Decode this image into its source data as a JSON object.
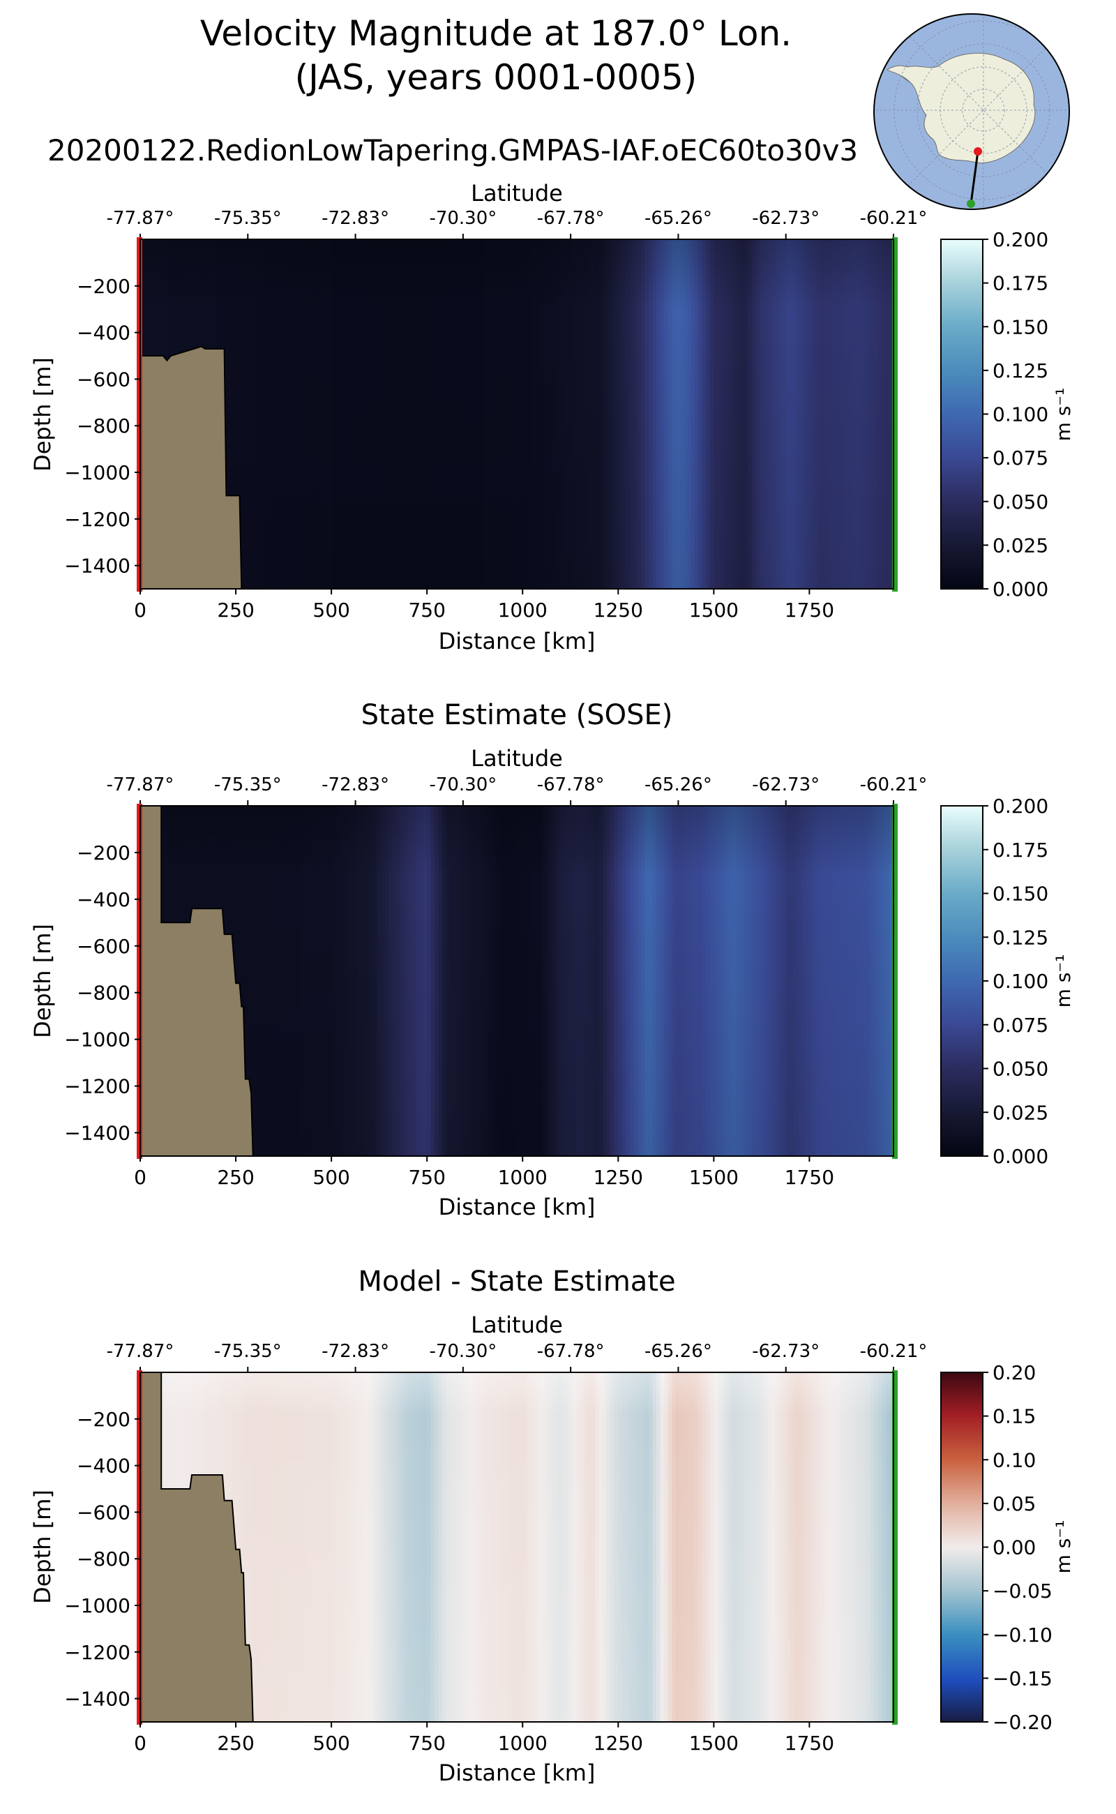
{
  "figure": {
    "title_line1": "Velocity Magnitude at 187.0° Lon.",
    "title_line2": "(JAS, years 0001-0005)",
    "run_name": "20200122.RedionLowTapering.GMPAS-IAF.oEC60to30v3"
  },
  "chart_data": [
    {
      "type": "heatmap",
      "title": "",
      "xlabel": "Distance [km]",
      "ylabel": "Depth [m]",
      "top_axis_label": "Latitude",
      "xlim": [
        0,
        1970
      ],
      "ylim": [
        -1500,
        0
      ],
      "x_ticks": [
        0,
        250,
        500,
        750,
        1000,
        1250,
        1500,
        1750
      ],
      "y_ticks": [
        -200,
        -400,
        -600,
        -800,
        -1000,
        -1200,
        -1400
      ],
      "lat_tick_labels": [
        "-77.87°",
        "-75.35°",
        "-72.83°",
        "-70.30°",
        "-67.78°",
        "-65.26°",
        "-62.73°",
        "-60.21°"
      ],
      "colorbar": {
        "label": "m s⁻¹",
        "min": 0.0,
        "max": 0.2,
        "colormap": "ice",
        "ticks": [
          "0.000",
          "0.025",
          "0.050",
          "0.075",
          "0.100",
          "0.125",
          "0.150",
          "0.175",
          "0.200"
        ]
      },
      "bathymetry_km_m": [
        [
          0,
          -500
        ],
        [
          60,
          -500
        ],
        [
          70,
          -520
        ],
        [
          80,
          -500
        ],
        [
          140,
          -470
        ],
        [
          160,
          -460
        ],
        [
          170,
          -470
        ],
        [
          220,
          -470
        ],
        [
          225,
          -1100
        ],
        [
          260,
          -1100
        ],
        [
          265,
          -1500
        ]
      ],
      "field_profile": [
        [
          0,
          0.012
        ],
        [
          200,
          0.01
        ],
        [
          400,
          0.008
        ],
        [
          700,
          0.006
        ],
        [
          1000,
          0.008
        ],
        [
          1200,
          0.015
        ],
        [
          1300,
          0.045
        ],
        [
          1400,
          0.095
        ],
        [
          1430,
          0.09
        ],
        [
          1500,
          0.05
        ],
        [
          1580,
          0.035
        ],
        [
          1620,
          0.055
        ],
        [
          1700,
          0.07
        ],
        [
          1780,
          0.055
        ],
        [
          1880,
          0.06
        ],
        [
          1970,
          0.05
        ]
      ]
    },
    {
      "type": "heatmap",
      "title": "State Estimate (SOSE)",
      "xlabel": "Distance [km]",
      "ylabel": "Depth [m]",
      "top_axis_label": "Latitude",
      "xlim": [
        0,
        1970
      ],
      "ylim": [
        -1500,
        0
      ],
      "x_ticks": [
        0,
        250,
        500,
        750,
        1000,
        1250,
        1500,
        1750
      ],
      "y_ticks": [
        -200,
        -400,
        -600,
        -800,
        -1000,
        -1200,
        -1400
      ],
      "lat_tick_labels": [
        "-77.87°",
        "-75.35°",
        "-72.83°",
        "-70.30°",
        "-67.78°",
        "-65.26°",
        "-62.73°",
        "-60.21°"
      ],
      "colorbar": {
        "label": "m s⁻¹",
        "min": 0.0,
        "max": 0.2,
        "colormap": "ice",
        "ticks": [
          "0.000",
          "0.025",
          "0.050",
          "0.075",
          "0.100",
          "0.125",
          "0.150",
          "0.175",
          "0.200"
        ]
      },
      "bathymetry_km_m": [
        [
          0,
          0
        ],
        [
          55,
          0
        ],
        [
          55,
          -500
        ],
        [
          130,
          -500
        ],
        [
          135,
          -440
        ],
        [
          215,
          -440
        ],
        [
          220,
          -550
        ],
        [
          240,
          -550
        ],
        [
          250,
          -760
        ],
        [
          260,
          -760
        ],
        [
          265,
          -860
        ],
        [
          270,
          -860
        ],
        [
          275,
          -1170
        ],
        [
          285,
          -1170
        ],
        [
          290,
          -1230
        ],
        [
          295,
          -1500
        ]
      ],
      "field_profile": [
        [
          0,
          0.01
        ],
        [
          300,
          0.01
        ],
        [
          500,
          0.012
        ],
        [
          600,
          0.02
        ],
        [
          700,
          0.05
        ],
        [
          750,
          0.06
        ],
        [
          800,
          0.025
        ],
        [
          950,
          0.008
        ],
        [
          1050,
          0.01
        ],
        [
          1100,
          0.03
        ],
        [
          1150,
          0.035
        ],
        [
          1200,
          0.03
        ],
        [
          1250,
          0.06
        ],
        [
          1330,
          0.1
        ],
        [
          1400,
          0.07
        ],
        [
          1470,
          0.075
        ],
        [
          1550,
          0.095
        ],
        [
          1620,
          0.08
        ],
        [
          1700,
          0.06
        ],
        [
          1780,
          0.075
        ],
        [
          1900,
          0.08
        ],
        [
          1970,
          0.1
        ]
      ]
    },
    {
      "type": "heatmap",
      "title": "Model - State Estimate",
      "xlabel": "Distance [km]",
      "ylabel": "Depth [m]",
      "top_axis_label": "Latitude",
      "xlim": [
        0,
        1970
      ],
      "ylim": [
        -1500,
        0
      ],
      "x_ticks": [
        0,
        250,
        500,
        750,
        1000,
        1250,
        1500,
        1750
      ],
      "y_ticks": [
        -200,
        -400,
        -600,
        -800,
        -1000,
        -1200,
        -1400
      ],
      "lat_tick_labels": [
        "-77.87°",
        "-75.35°",
        "-72.83°",
        "-70.30°",
        "-67.78°",
        "-65.26°",
        "-62.73°",
        "-60.21°"
      ],
      "colorbar": {
        "label": "m s⁻¹",
        "min": -0.2,
        "max": 0.2,
        "colormap": "balance",
        "ticks": [
          "−0.20",
          "−0.15",
          "−0.10",
          "−0.05",
          "0.00",
          "0.05",
          "0.10",
          "0.15",
          "0.20"
        ]
      },
      "bathymetry_km_m": [
        [
          0,
          0
        ],
        [
          55,
          0
        ],
        [
          55,
          -500
        ],
        [
          130,
          -500
        ],
        [
          135,
          -440
        ],
        [
          215,
          -440
        ],
        [
          220,
          -550
        ],
        [
          240,
          -550
        ],
        [
          250,
          -760
        ],
        [
          260,
          -760
        ],
        [
          265,
          -860
        ],
        [
          270,
          -860
        ],
        [
          275,
          -1170
        ],
        [
          285,
          -1170
        ],
        [
          290,
          -1230
        ],
        [
          295,
          -1500
        ]
      ],
      "field_profile": [
        [
          0,
          -0.005
        ],
        [
          300,
          0.01
        ],
        [
          500,
          0.008
        ],
        [
          600,
          0.0
        ],
        [
          700,
          -0.035
        ],
        [
          750,
          -0.04
        ],
        [
          800,
          -0.01
        ],
        [
          900,
          0.005
        ],
        [
          1000,
          0.01
        ],
        [
          1100,
          -0.01
        ],
        [
          1180,
          0.012
        ],
        [
          1250,
          -0.02
        ],
        [
          1330,
          -0.035
        ],
        [
          1400,
          0.03
        ],
        [
          1450,
          0.025
        ],
        [
          1550,
          -0.02
        ],
        [
          1620,
          -0.01
        ],
        [
          1720,
          0.02
        ],
        [
          1780,
          0.005
        ],
        [
          1900,
          -0.015
        ],
        [
          1970,
          -0.05
        ]
      ]
    }
  ],
  "inset_map": {
    "section_line_lat": [
      -77.87,
      -60.21
    ],
    "section_lon": 187.0
  }
}
